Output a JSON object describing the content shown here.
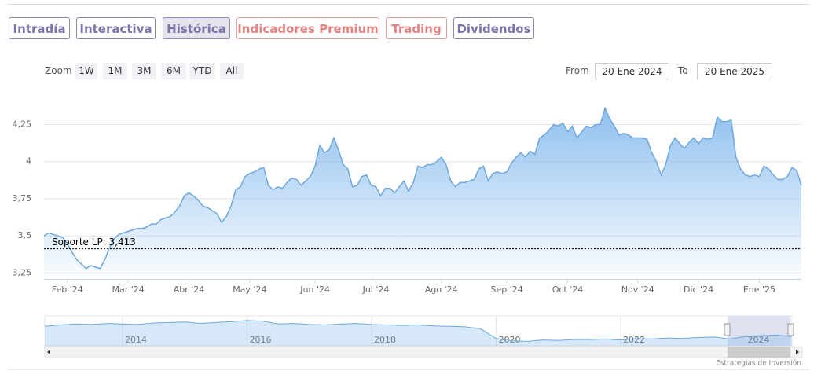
{
  "tabs": [
    "Intradía",
    "Interactiva",
    "Histórica",
    "Indicadores Premium",
    "Trading",
    "Dividendos"
  ],
  "zoom": {
    "label": "Zoom",
    "buttons": [
      "1W",
      "1M",
      "3M",
      "6M",
      "YTD",
      "All"
    ]
  },
  "range": {
    "from_label": "From",
    "from": "20 Ene 2024",
    "to_label": "To",
    "to": "20 Ene 2025"
  },
  "chart_data": {
    "type": "area",
    "color": "#6fa8dc",
    "values": [
      3.5,
      3.52,
      3.51,
      3.5,
      3.49,
      3.45,
      3.39,
      3.34,
      3.31,
      3.28,
      3.3,
      3.29,
      3.28,
      3.34,
      3.42,
      3.48,
      3.51,
      3.52,
      3.53,
      3.54,
      3.55,
      3.55,
      3.56,
      3.58,
      3.58,
      3.61,
      3.62,
      3.63,
      3.66,
      3.7,
      3.77,
      3.79,
      3.77,
      3.74,
      3.7,
      3.69,
      3.67,
      3.65,
      3.59,
      3.63,
      3.7,
      3.81,
      3.83,
      3.9,
      3.92,
      3.93,
      3.95,
      3.96,
      3.84,
      3.81,
      3.83,
      3.82,
      3.86,
      3.89,
      3.88,
      3.84,
      3.87,
      3.9,
      3.97,
      4.11,
      4.06,
      4.08,
      4.16,
      4.08,
      3.98,
      3.95,
      3.83,
      3.84,
      3.9,
      3.91,
      3.84,
      3.83,
      3.77,
      3.82,
      3.82,
      3.79,
      3.83,
      3.87,
      3.8,
      3.86,
      3.97,
      3.96,
      3.98,
      3.98,
      4.0,
      4.03,
      3.98,
      3.87,
      3.83,
      3.86,
      3.86,
      3.87,
      3.88,
      3.95,
      3.97,
      3.87,
      3.92,
      3.93,
      3.92,
      3.93,
      3.99,
      4.03,
      4.06,
      4.03,
      4.07,
      4.05,
      4.16,
      4.18,
      4.21,
      4.25,
      4.24,
      4.26,
      4.2,
      4.24,
      4.16,
      4.2,
      4.24,
      4.23,
      4.25,
      4.25,
      4.36,
      4.29,
      4.24,
      4.18,
      4.19,
      4.18,
      4.16,
      4.16,
      4.16,
      4.15,
      4.06,
      4.0,
      3.91,
      3.98,
      4.11,
      4.16,
      4.12,
      4.09,
      4.13,
      4.16,
      4.12,
      4.16,
      4.15,
      4.16,
      4.3,
      4.27,
      4.27,
      4.28,
      4.03,
      3.95,
      3.91,
      3.9,
      3.91,
      3.9,
      3.97,
      3.95,
      3.91,
      3.88,
      3.88,
      3.9,
      3.96,
      3.94,
      3.84
    ],
    "ylim": [
      3.21,
      4.48
    ],
    "yticks": [
      {
        "value": 3.25,
        "label": "3,25"
      },
      {
        "value": 3.5,
        "label": "3,5"
      },
      {
        "value": 3.75,
        "label": "3,75"
      },
      4,
      {
        "value": 4.25,
        "label": "4,25"
      }
    ],
    "xticks": [
      {
        "value": 5,
        "label": "Feb '24"
      },
      {
        "value": 18,
        "label": "Mar '24"
      },
      {
        "value": 31,
        "label": "Abr '24"
      },
      {
        "value": 44,
        "label": "May '24"
      },
      {
        "value": 58,
        "label": "Jun '24"
      },
      {
        "value": 71,
        "label": "Jul '24"
      },
      {
        "value": 85,
        "label": "Ago '24"
      },
      {
        "value": 99,
        "label": "Sep '24"
      },
      {
        "value": 112,
        "label": "Oct '24"
      },
      {
        "value": 127,
        "label": "Nov '24"
      },
      {
        "value": 140,
        "label": "Dic '24"
      },
      {
        "value": 153,
        "label": "Ene '25"
      }
    ],
    "grid": true,
    "annotation": {
      "value": 3.413,
      "label": "Soporte LP: 3,413"
    },
    "navigator": {
      "values": [
        6.0,
        6.3,
        6.5,
        6.4,
        6.6,
        6.5,
        6.4,
        6.7,
        6.8,
        6.9,
        6.6,
        6.8,
        7.0,
        7.2,
        7.1,
        6.5,
        6.6,
        6.4,
        6.3,
        6.5,
        6.6,
        6.4,
        6.3,
        6.2,
        6.3,
        6.1,
        6.0,
        5.9,
        5.5,
        3.5,
        3.0,
        2.9,
        3.2,
        3.1,
        3.3,
        3.3,
        3.4,
        3.2,
        3.5,
        3.4,
        3.6,
        3.5,
        3.7,
        3.8,
        3.4,
        3.9,
        4.1,
        4.2,
        3.9
      ],
      "ylim": [
        2,
        8
      ],
      "xticks": [
        {
          "value": 5,
          "label": "2014"
        },
        {
          "value": 13,
          "label": "2016"
        },
        {
          "value": 21,
          "label": "2018"
        },
        {
          "value": 29,
          "label": "2020"
        },
        {
          "value": 37,
          "label": "2022"
        },
        {
          "value": 45,
          "label": "2024"
        }
      ]
    }
  },
  "credit": "Estrategias de Inversión"
}
